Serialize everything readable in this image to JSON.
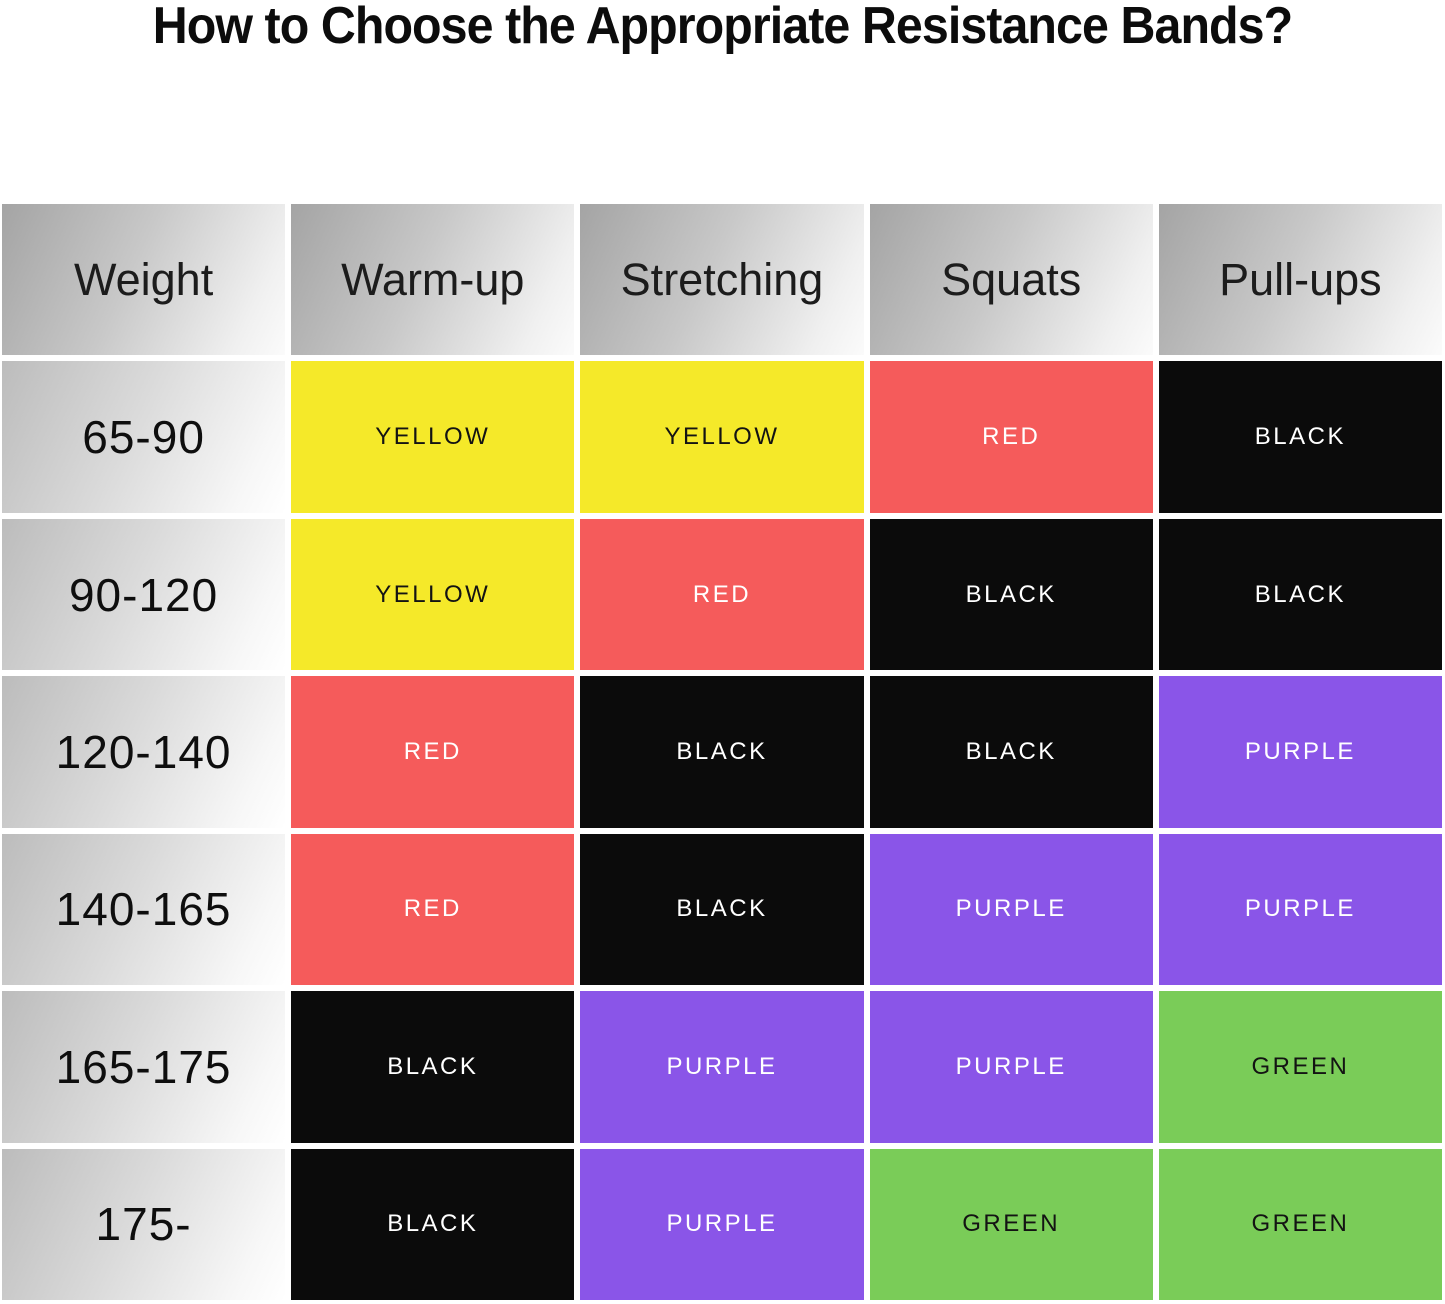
{
  "title": "How to Choose the Appropriate Resistance Bands?",
  "chart_data": {
    "type": "table",
    "title": "How to Choose the Appropriate Resistance Bands?",
    "columns": [
      "Weight",
      "Warm-up",
      "Stretching",
      "Squats",
      "Pull-ups"
    ],
    "rows": [
      [
        "65-90",
        "YELLOW",
        "YELLOW",
        "RED",
        "BLACK"
      ],
      [
        "90-120",
        "YELLOW",
        "RED",
        "BLACK",
        "BLACK"
      ],
      [
        "120-140",
        "RED",
        "BLACK",
        "BLACK",
        "PURPLE"
      ],
      [
        "140-165",
        "RED",
        "BLACK",
        "PURPLE",
        "PURPLE"
      ],
      [
        "165-175",
        "BLACK",
        "PURPLE",
        "PURPLE",
        "GREEN"
      ],
      [
        "175-",
        "BLACK",
        "PURPLE",
        "GREEN",
        "GREEN"
      ]
    ],
    "band_colors": {
      "YELLOW": {
        "bg": "#f5e929",
        "text": "#131313"
      },
      "RED": {
        "bg": "#f55b5b",
        "text": "#ffffff"
      },
      "BLACK": {
        "bg": "#0b0b0b",
        "text": "#ffffff"
      },
      "PURPLE": {
        "bg": "#8a55e8",
        "text": "#ffffff"
      },
      "GREEN": {
        "bg": "#7acc58",
        "text": "#131313"
      }
    },
    "layout": {
      "header_gradient_from": "#a4a4a4",
      "header_gradient_to": "#fbfbfb",
      "weight_gradient_from": "#bcbcbc",
      "weight_gradient_to": "#ffffff",
      "grid_gap_color": "#ffffff"
    }
  }
}
